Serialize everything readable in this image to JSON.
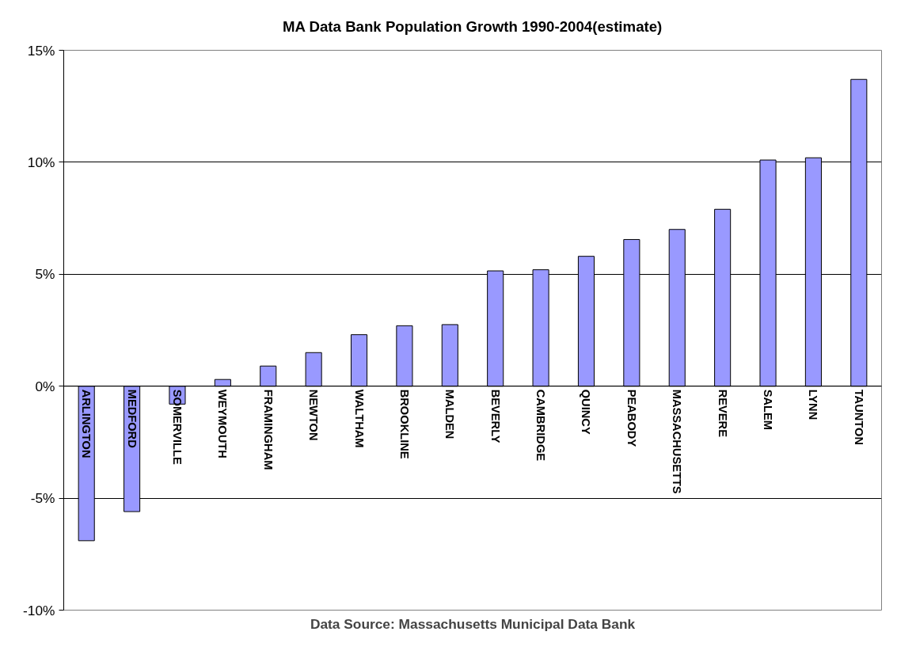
{
  "chart_data": {
    "type": "bar",
    "title": "MA Data Bank Population Growth 1990-2004(estimate)",
    "categories": [
      "ARLINGTON",
      "MEDFORD",
      "SOMERVILLE",
      "WEYMOUTH",
      "FRAMINGHAM",
      "NEWTON",
      "WALTHAM",
      "BROOKLINE",
      "MALDEN",
      "BEVERLY",
      "CAMBRIDGE",
      "QUINCY",
      "PEABODY",
      "MASSACHUSETTS",
      "REVERE",
      "SALEM",
      "LYNN",
      "TAUNTON"
    ],
    "values": [
      -6.9,
      -5.6,
      -0.8,
      0.3,
      0.9,
      1.5,
      2.3,
      2.7,
      2.75,
      5.15,
      5.2,
      5.8,
      6.55,
      7.0,
      7.9,
      10.1,
      10.2,
      13.7
    ],
    "color": "#9999ff",
    "ylim": [
      -10,
      15
    ],
    "yticks": [
      {
        "value": -10,
        "label": "-10%"
      },
      {
        "value": -5,
        "label": "-5%"
      },
      {
        "value": 0,
        "label": "0%"
      },
      {
        "value": 5,
        "label": "5%"
      },
      {
        "value": 10,
        "label": "10%"
      },
      {
        "value": 15,
        "label": "15%"
      }
    ],
    "grid": "y",
    "annotations": [
      "Data Source: Massachusetts Municipal Data Bank"
    ]
  }
}
